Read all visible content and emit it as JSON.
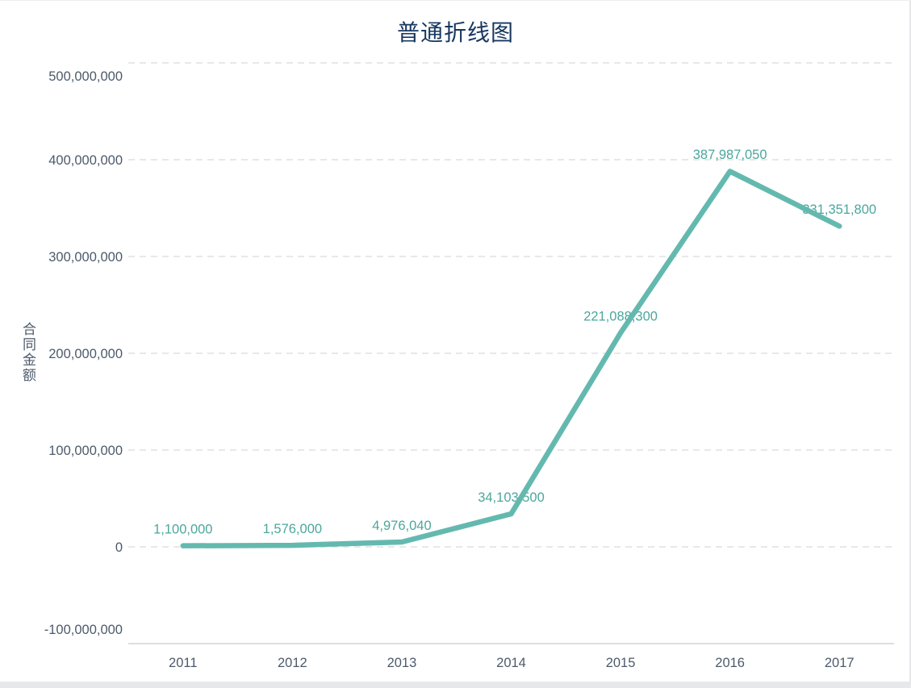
{
  "page": {
    "background": "#ffffff",
    "bottom_bar_color": "#e7e8ec",
    "edge_border_color": "#e6e7eb"
  },
  "chart_data": {
    "type": "line",
    "title": "普通折线图",
    "ylabel": "合同金额",
    "xlabel": "",
    "categories": [
      "2011",
      "2012",
      "2013",
      "2014",
      "2015",
      "2016",
      "2017"
    ],
    "values": [
      1100000,
      1576000,
      4976040,
      34103500,
      221088300,
      387987050,
      331351800
    ],
    "data_labels": [
      "1,100,000",
      "1,576,000",
      "4,976,040",
      "34,103,500",
      "221,088,300",
      "387,987,050",
      "331,351,800"
    ],
    "y_tick_labels": [
      "-100,000,000",
      "0",
      "100,000,000",
      "200,000,000",
      "300,000,000",
      "400,000,000",
      "500,000,000"
    ],
    "ylim": [
      -100000000,
      500000000
    ],
    "y_step": 100000000,
    "grid": "horizontal-dashed",
    "legend": "none",
    "markers": "none",
    "colors": {
      "line": "#64b9af",
      "data_label": "#4ba79c",
      "axis_text": "#4c5a6b",
      "title_text": "#173760",
      "gridline": "#e0e0e0",
      "axis_line": "#d2d4d6"
    }
  }
}
